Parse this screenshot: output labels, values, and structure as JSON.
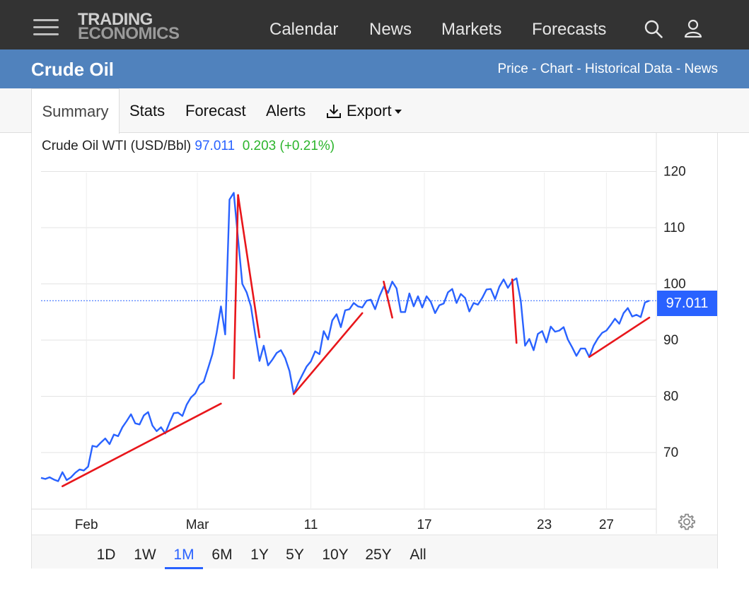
{
  "header": {
    "logo_line1": "TRADING",
    "logo_line2": "ECONOMICS",
    "nav": [
      "Calendar",
      "News",
      "Markets",
      "Forecasts"
    ]
  },
  "titlebar": {
    "title": "Crude Oil",
    "links": [
      "Price",
      "Chart",
      "Historical Data",
      "News"
    ],
    "separator": " - "
  },
  "tabs": [
    "Summary",
    "Stats",
    "Forecast",
    "Alerts",
    "Export"
  ],
  "legend": {
    "name": "Crude Oil WTI (USD/Bbl)",
    "last": "97.011",
    "change": "0.203 (+0.21%)"
  },
  "price_tag": "97.011",
  "ranges": [
    "1D",
    "1W",
    "1M",
    "6M",
    "1Y",
    "5Y",
    "10Y",
    "25Y",
    "All"
  ],
  "active_range": "1M",
  "colors": {
    "line": "#2962ff",
    "trend": "#e8161b",
    "change_positive": "#2cb52c",
    "header_bg": "#333333",
    "titlebar_bg": "#5082bd"
  },
  "chart_data": {
    "type": "line",
    "title": "",
    "xlabel": "",
    "ylabel": "",
    "ylim": [
      60,
      125
    ],
    "y_ticks": [
      70,
      80,
      90,
      100,
      110,
      120
    ],
    "x_tick_labels": [
      "Feb",
      "Mar",
      "11",
      "17",
      "23",
      "27"
    ],
    "last_value": 97.011,
    "grid": true,
    "series": [
      {
        "values": [
          65.5,
          65.3,
          65.6,
          65.2,
          64.9,
          66.5,
          65.1,
          65.6,
          66.4,
          67.0,
          66.8,
          67.5,
          71.2,
          71.0,
          71.8,
          72.5,
          71.5,
          73.2,
          72.9,
          74.5,
          75.6,
          76.8,
          75.2,
          75.0,
          76.6,
          77.2,
          74.8,
          73.8,
          74.5,
          73.4,
          75.3,
          77.0,
          77.1,
          76.5,
          78.5,
          79.8,
          80.5,
          82.0,
          82.6,
          85.0,
          87.5,
          91.3,
          96.0,
          91.0,
          115.0,
          116.2,
          108.0,
          100.0,
          98.5,
          96.0,
          91.0,
          86.3,
          89.0,
          85.5,
          86.5,
          87.7,
          88.2,
          86.8,
          84.5,
          80.4,
          82.3,
          83.8,
          85.3,
          86.2,
          88.0,
          87.5,
          91.6,
          90.1,
          93.5,
          94.6,
          92.3,
          95.3,
          95.5,
          96.6,
          96.0,
          95.8,
          97.0,
          97.2,
          95.5,
          97.8,
          99.5,
          98.4,
          100.4,
          99.2,
          95.0,
          95.0,
          98.3,
          96.0,
          97.8,
          95.8,
          97.8,
          96.8,
          94.8,
          96.2,
          96.5,
          98.5,
          99.1,
          96.6,
          98.2,
          97.5,
          95.1,
          96.6,
          96.3,
          97.5,
          99.0,
          99.1,
          97.3,
          99.5,
          100.8,
          99.3,
          100.5,
          101.0,
          97.0,
          89.0,
          90.2,
          88.2,
          91.1,
          91.6,
          89.6,
          92.4,
          91.5,
          91.7,
          92.3,
          90.1,
          88.7,
          87.2,
          88.5,
          88.5,
          87.0,
          89.0,
          90.3,
          91.3,
          91.7,
          92.7,
          93.8,
          92.9,
          94.8,
          95.7,
          94.2,
          94.5,
          94.1,
          96.7,
          97.0
        ]
      }
    ],
    "trendlines": [
      {
        "from": {
          "x": 5,
          "y": 64.0
        },
        "to": {
          "x": 42,
          "y": 78.7
        }
      },
      {
        "from": {
          "x": 45,
          "y": 83.2
        },
        "to": {
          "x": 46,
          "y": 115.8
        }
      },
      {
        "from": {
          "x": 46,
          "y": 115.8
        },
        "to": {
          "x": 51,
          "y": 90.5
        }
      },
      {
        "from": {
          "x": 59,
          "y": 80.4
        },
        "to": {
          "x": 75,
          "y": 94.8
        }
      },
      {
        "from": {
          "x": 80,
          "y": 100.4
        },
        "to": {
          "x": 82,
          "y": 94.0
        }
      },
      {
        "from": {
          "x": 110,
          "y": 100.8
        },
        "to": {
          "x": 111,
          "y": 89.5
        }
      },
      {
        "from": {
          "x": 128,
          "y": 87.0
        },
        "to": {
          "x": 142,
          "y": 94.0
        }
      }
    ]
  }
}
